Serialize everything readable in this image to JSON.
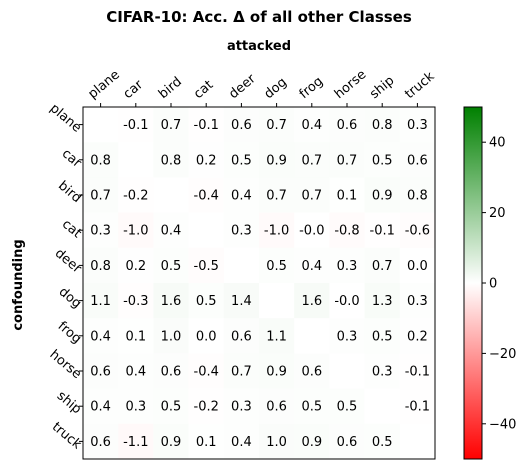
{
  "chart_data": {
    "type": "heatmap",
    "title": "CIFAR-10: Acc. Δ of all other Classes",
    "xlabel": "attacked",
    "ylabel": "confounding",
    "x_categories": [
      "plane",
      "car",
      "bird",
      "cat",
      "deer",
      "dog",
      "frog",
      "horse",
      "ship",
      "truck"
    ],
    "y_categories": [
      "plane",
      "car",
      "bird",
      "cat",
      "deer",
      "dog",
      "frog",
      "horse",
      "ship",
      "truck"
    ],
    "cells": [
      [
        "",
        "-0.1",
        "0.7",
        "-0.1",
        "0.6",
        "0.7",
        "0.4",
        "0.6",
        "0.8",
        "0.3"
      ],
      [
        "0.8",
        "",
        "0.8",
        "0.2",
        "0.5",
        "0.9",
        "0.7",
        "0.7",
        "0.5",
        "0.6"
      ],
      [
        "0.7",
        "-0.2",
        "",
        "-0.4",
        "0.4",
        "0.7",
        "0.7",
        "0.1",
        "0.9",
        "0.8"
      ],
      [
        "0.3",
        "-1.0",
        "0.4",
        "",
        "0.3",
        "-1.0",
        "-0.0",
        "-0.8",
        "-0.1",
        "-0.6"
      ],
      [
        "0.8",
        "0.2",
        "0.5",
        "-0.5",
        "",
        "0.5",
        "0.4",
        "0.3",
        "0.7",
        "0.0"
      ],
      [
        "1.1",
        "-0.3",
        "1.6",
        "0.5",
        "1.4",
        "",
        "1.6",
        "-0.0",
        "1.3",
        "0.3"
      ],
      [
        "0.4",
        "0.1",
        "1.0",
        "0.0",
        "0.6",
        "1.1",
        "",
        "0.3",
        "0.5",
        "0.2"
      ],
      [
        "0.6",
        "0.4",
        "0.6",
        "-0.4",
        "0.7",
        "0.9",
        "0.6",
        "",
        "0.3",
        "-0.1"
      ],
      [
        "0.4",
        "0.3",
        "0.5",
        "-0.2",
        "0.3",
        "0.6",
        "0.5",
        "0.5",
        "",
        "-0.1"
      ],
      [
        "0.6",
        "-1.1",
        "0.9",
        "0.1",
        "0.4",
        "1.0",
        "0.9",
        "0.6",
        "0.5",
        ""
      ]
    ],
    "colorbar": {
      "range": [
        -50,
        50
      ],
      "ticks": [
        {
          "value": 40,
          "label": "40"
        },
        {
          "value": 20,
          "label": "20"
        },
        {
          "value": 0,
          "label": "0"
        },
        {
          "value": -20,
          "label": "−20"
        },
        {
          "value": -40,
          "label": "−40"
        }
      ],
      "colors": {
        "low": "#ff0000",
        "mid": "#ffffff",
        "high": "#008000"
      }
    }
  }
}
